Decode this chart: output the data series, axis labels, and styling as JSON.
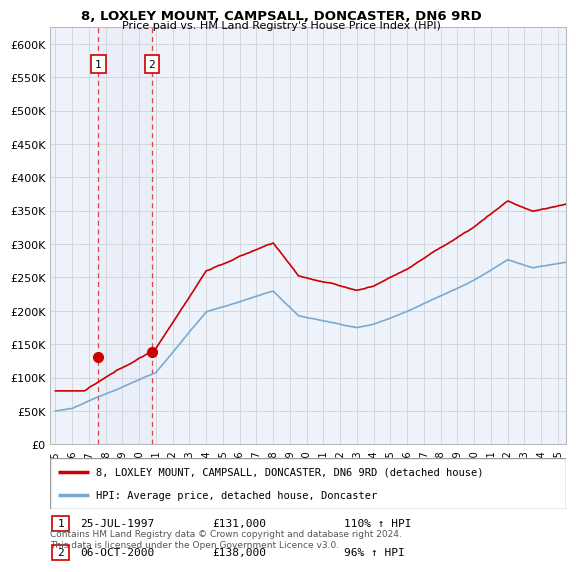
{
  "title": "8, LOXLEY MOUNT, CAMPSALL, DONCASTER, DN6 9RD",
  "subtitle": "Price paid vs. HM Land Registry's House Price Index (HPI)",
  "ylim": [
    0,
    625000
  ],
  "yticks": [
    0,
    50000,
    100000,
    150000,
    200000,
    250000,
    300000,
    350000,
    400000,
    450000,
    500000,
    550000,
    600000
  ],
  "xlim_start": 1994.7,
  "xlim_end": 2025.5,
  "sale1_x": 1997.56,
  "sale1_y": 131000,
  "sale2_x": 2000.76,
  "sale2_y": 138000,
  "sale1_label": "1",
  "sale2_label": "2",
  "sale1_date": "25-JUL-1997",
  "sale1_price": "£131,000",
  "sale1_hpi": "110% ↑ HPI",
  "sale2_date": "06-OCT-2000",
  "sale2_price": "£138,000",
  "sale2_hpi": "96% ↑ HPI",
  "property_line_color": "#cc0000",
  "hpi_line_color": "#7aaad0",
  "background_color": "#ffffff",
  "plot_bg_color": "#eef2fb",
  "vline_color": "#dd4444",
  "grid_color": "#cccccc",
  "legend_label_property": "8, LOXLEY MOUNT, CAMPSALL, DONCASTER, DN6 9RD (detached house)",
  "legend_label_hpi": "HPI: Average price, detached house, Doncaster",
  "footnote": "Contains HM Land Registry data © Crown copyright and database right 2024.\nThis data is licensed under the Open Government Licence v3.0."
}
